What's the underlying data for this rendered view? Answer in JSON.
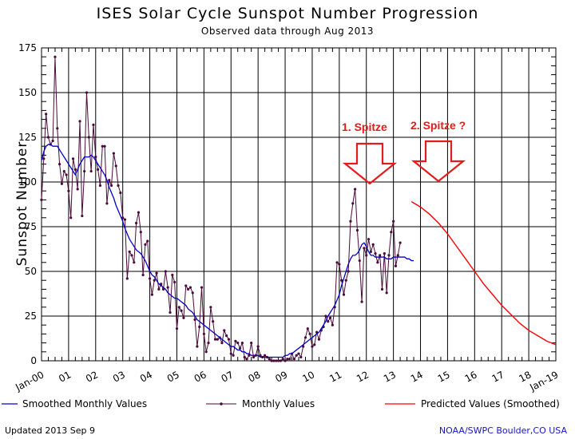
{
  "header": {
    "title": "ISES Solar Cycle Sunspot Number Progression",
    "subtitle": "Observed data through Aug 2013"
  },
  "footer": {
    "updated": "Updated 2013 Sep  9",
    "source": "NOAA/SWPC Boulder,CO USA"
  },
  "annotations": {
    "first_peak": "1. Spitze",
    "second_peak": "2. Spitze ?"
  },
  "colors": {
    "smoothed": "#0000cc",
    "monthly": "#4a0a3a",
    "predicted": "#ff0000",
    "annotation": "#e21b1b"
  },
  "chart_data": {
    "type": "line",
    "title": "ISES Solar Cycle Sunspot Number Progression",
    "subtitle": "Observed data through Aug 2013",
    "xlabel": "",
    "ylabel": "Sunspot Number",
    "x_start": "Jan-00",
    "x_end": "Jan-19",
    "xlim": [
      0,
      228
    ],
    "ylim": [
      0,
      175
    ],
    "yticks": [
      0,
      25,
      50,
      75,
      100,
      125,
      150,
      175
    ],
    "xtick_labels": [
      "Jan-00",
      "01",
      "02",
      "03",
      "04",
      "05",
      "06",
      "07",
      "08",
      "09",
      "10",
      "11",
      "12",
      "13",
      "14",
      "15",
      "16",
      "17",
      "18",
      "Jan-19"
    ],
    "grid": true,
    "legend": [
      "Smoothed Monthly Values",
      "Monthly Values",
      "Predicted Values (Smoothed)"
    ],
    "series": [
      {
        "name": "Monthly Values",
        "x_start": 0,
        "values": [
          90,
          113,
          138,
          125,
          121,
          123,
          170,
          130,
          110,
          99,
          106,
          104,
          95,
          80,
          113,
          107,
          96,
          134,
          81,
          106,
          150,
          125,
          106,
          132,
          114,
          107,
          98,
          120,
          120,
          88,
          101,
          98,
          116,
          109,
          98,
          94,
          80,
          79,
          46,
          61,
          59,
          55,
          77,
          83,
          72,
          48,
          65,
          67,
          46,
          37,
          45,
          49,
          40,
          43,
          40,
          50,
          41,
          27,
          48,
          44,
          18,
          30,
          28,
          24,
          42,
          40,
          41,
          38,
          23,
          8,
          19,
          41,
          15,
          5,
          10,
          30,
          22,
          12,
          12,
          13,
          10,
          17,
          14,
          12,
          4,
          3,
          11,
          10,
          7,
          10,
          2,
          1,
          3,
          10,
          2,
          3,
          8,
          3,
          2,
          3,
          2,
          1,
          0,
          0,
          0,
          0,
          0,
          1,
          0,
          1,
          1,
          4,
          1,
          3,
          4,
          2,
          8,
          13,
          18,
          15,
          8,
          9,
          16,
          12,
          17,
          19,
          25,
          22,
          24,
          20,
          30,
          55,
          54,
          45,
          37,
          45,
          50,
          78,
          88,
          96,
          73,
          56,
          33,
          63,
          59,
          68,
          61,
          65,
          60,
          55,
          59,
          40,
          60,
          38,
          59,
          72,
          78,
          53,
          59,
          66
        ]
      },
      {
        "name": "Smoothed Monthly Values",
        "x_start": 0,
        "values": [
          112,
          117,
          120,
          121,
          121,
          120,
          120,
          120,
          118,
          116,
          114,
          112,
          110,
          108,
          106,
          104,
          107,
          110,
          112,
          114,
          114,
          114,
          115,
          114,
          112,
          110,
          108,
          106,
          104,
          101,
          97,
          94,
          91,
          87,
          84,
          81,
          78,
          74,
          71,
          68,
          66,
          64,
          62,
          61,
          60,
          58,
          56,
          53,
          50,
          48,
          47,
          45,
          43,
          42,
          41,
          40,
          38,
          37,
          36,
          35,
          35,
          34,
          33,
          32,
          31,
          29,
          28,
          27,
          25,
          23,
          22,
          21,
          20,
          19,
          18,
          17,
          16,
          15,
          14,
          13,
          12,
          11,
          10,
          9,
          8,
          8,
          7,
          6,
          6,
          5,
          5,
          4,
          4,
          3,
          3,
          3,
          3,
          2,
          2,
          2,
          2,
          2,
          2,
          2,
          2,
          2,
          2,
          2,
          3,
          3,
          4,
          4,
          5,
          6,
          7,
          8,
          9,
          10,
          11,
          12,
          13,
          14,
          15,
          16,
          18,
          20,
          22,
          25,
          27,
          29,
          31,
          34,
          37,
          42,
          46,
          50,
          54,
          57,
          59,
          59,
          60,
          62,
          65,
          66,
          64,
          61,
          59,
          59,
          58,
          58,
          58,
          58,
          58,
          57,
          57,
          57,
          58,
          58,
          58,
          58,
          58,
          58,
          57,
          57,
          56,
          56
        ]
      },
      {
        "name": "Predicted Values (Smoothed)",
        "x": [
          164,
          168,
          172,
          176,
          180,
          184,
          188,
          192,
          196,
          200,
          204,
          208,
          212,
          216,
          220,
          224,
          228
        ],
        "values": [
          89,
          86,
          82,
          77,
          71,
          64,
          57,
          50,
          43,
          37,
          31,
          26,
          21,
          17,
          14,
          11,
          9
        ]
      }
    ]
  }
}
